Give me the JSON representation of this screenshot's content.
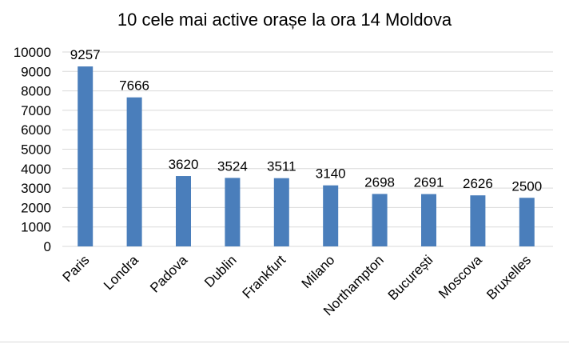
{
  "chart_data": {
    "type": "bar",
    "title": "10 cele mai active orașe la ora 14 Moldova",
    "categories": [
      "Paris",
      "Londra",
      "Padova",
      "Dublin",
      "Frankfurt",
      "Milano",
      "Northampton",
      "București",
      "Moscova",
      "Bruxelles"
    ],
    "values": [
      9257,
      7666,
      3620,
      3524,
      3511,
      3140,
      2698,
      2691,
      2626,
      2500
    ],
    "yticks": [
      0,
      1000,
      2000,
      3000,
      4000,
      5000,
      6000,
      7000,
      8000,
      9000,
      10000
    ],
    "ylim": [
      0,
      10000
    ],
    "grid": true,
    "bar_color": "#4a7ebb",
    "grid_color": "#d9d9d9"
  }
}
